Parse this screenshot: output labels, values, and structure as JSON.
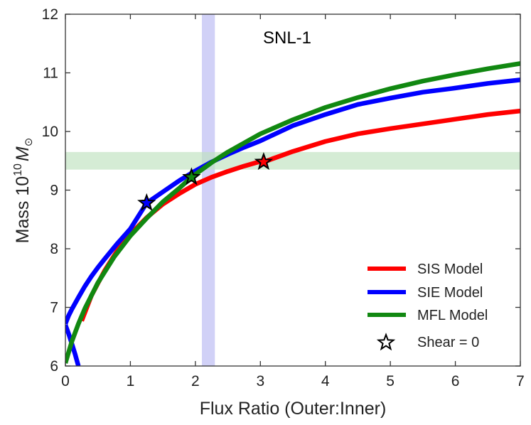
{
  "chart_data": {
    "type": "line",
    "title": "SNL-1",
    "xlabel": "Flux Ratio (Outer:Inner)",
    "ylabel_prefix": "Mass ",
    "ylabel_base": "10",
    "ylabel_exp": "10",
    "ylabel_symbol": "M",
    "ylabel_sub": "⊙",
    "xlim": [
      0,
      7
    ],
    "ylim": [
      6,
      12
    ],
    "xticks": [
      0,
      1,
      2,
      3,
      4,
      5,
      6,
      7
    ],
    "yticks": [
      6,
      7,
      8,
      9,
      10,
      11,
      12
    ],
    "vband": {
      "x0": 2.1,
      "x1": 2.3,
      "color": "#b8b8f2"
    },
    "hband": {
      "y0": 9.35,
      "y1": 9.65,
      "color": "#bfe2bf"
    },
    "series": [
      {
        "name": "SIS Model",
        "color": "#ff0000",
        "x": [
          0.25,
          0.4,
          0.6,
          0.8,
          1.0,
          1.25,
          1.5,
          1.75,
          2.0,
          2.25,
          2.5,
          2.75,
          3.0,
          3.05,
          3.5,
          4.0,
          4.5,
          5.0,
          5.5,
          6.0,
          6.5,
          7.0
        ],
        "y": [
          6.77,
          7.2,
          7.62,
          7.97,
          8.25,
          8.53,
          8.76,
          8.94,
          9.1,
          9.22,
          9.32,
          9.41,
          9.49,
          9.48,
          9.66,
          9.83,
          9.96,
          10.05,
          10.13,
          10.21,
          10.29,
          10.35
        ]
      },
      {
        "name": "SIE Model",
        "color": "#0000ff",
        "x": [
          0.0,
          0.05,
          0.1,
          0.2,
          0.3,
          0.4,
          0.5,
          0.6,
          0.8,
          1.0,
          1.25,
          1.5,
          1.75,
          2.0,
          2.25,
          2.5,
          2.75,
          3.0,
          3.5,
          4.0,
          4.5,
          5.0,
          5.5,
          6.0,
          6.5,
          7.0
        ],
        "y": [
          6.72,
          6.86,
          6.97,
          7.17,
          7.36,
          7.53,
          7.68,
          7.82,
          8.09,
          8.34,
          8.78,
          8.97,
          9.16,
          9.33,
          9.48,
          9.61,
          9.73,
          9.84,
          10.1,
          10.29,
          10.46,
          10.57,
          10.67,
          10.74,
          10.82,
          10.88
        ]
      },
      {
        "name": "SIE Model (lower branch)",
        "color": "#0000ff",
        "x": [
          0.0,
          0.05,
          0.1,
          0.15,
          0.2
        ],
        "y": [
          6.7,
          6.55,
          6.38,
          6.2,
          6.0
        ]
      },
      {
        "name": "MFL Model",
        "color": "#118811",
        "x": [
          0.0,
          0.1,
          0.2,
          0.3,
          0.5,
          0.75,
          1.0,
          1.25,
          1.5,
          1.75,
          1.94,
          2.25,
          2.5,
          3.0,
          3.5,
          4.0,
          4.5,
          5.0,
          5.5,
          6.0,
          6.5,
          7.0
        ],
        "y": [
          6.05,
          6.42,
          6.72,
          6.98,
          7.42,
          7.86,
          8.22,
          8.52,
          8.8,
          9.03,
          9.22,
          9.47,
          9.65,
          9.96,
          10.2,
          10.41,
          10.58,
          10.73,
          10.86,
          10.97,
          11.07,
          11.16
        ]
      }
    ],
    "markers": {
      "name": "Shear = 0",
      "points": [
        {
          "x": 1.25,
          "y": 8.78,
          "fill": "#0000ff"
        },
        {
          "x": 1.94,
          "y": 9.22,
          "fill": "#118811"
        },
        {
          "x": 3.05,
          "y": 9.48,
          "fill": "#ff0000"
        }
      ]
    },
    "legend": {
      "position": "lower right",
      "entries": [
        {
          "label": "SIS Model",
          "color": "#ff0000",
          "kind": "line"
        },
        {
          "label": "SIE Model",
          "color": "#0000ff",
          "kind": "line"
        },
        {
          "label": "MFL Model",
          "color": "#118811",
          "kind": "line"
        },
        {
          "label": "Shear = 0",
          "color": "#ffffff",
          "kind": "star"
        }
      ]
    }
  }
}
